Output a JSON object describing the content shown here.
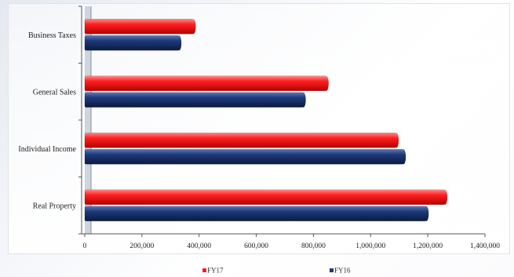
{
  "chart_data": {
    "type": "bar",
    "orientation": "horizontal",
    "categories": [
      "Business Taxes",
      "General Sales",
      "Individual Income",
      "Real Property"
    ],
    "series": [
      {
        "name": "FY17",
        "color": "#ff1a1a",
        "values": [
          380000,
          845000,
          1090000,
          1260000
        ]
      },
      {
        "name": "FY16",
        "color": "#1f3a7a",
        "values": [
          330000,
          765000,
          1115000,
          1195000
        ]
      }
    ],
    "xlim": [
      0,
      1400000
    ],
    "xticks": [
      0,
      200000,
      400000,
      600000,
      800000,
      1000000,
      1200000,
      1400000
    ],
    "xtick_labels": [
      "0",
      "200,000",
      "400,000",
      "600,000",
      "800,000",
      "1,000,000",
      "1,200,000",
      "1,400,000"
    ],
    "legend_position": "bottom",
    "grid": false
  }
}
